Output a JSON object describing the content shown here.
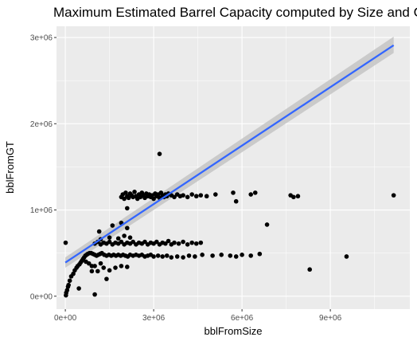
{
  "chart_data": {
    "type": "scatter",
    "title": "Maximum Estimated Barrel Capacity computed by Size and GT",
    "xlabel": "bblFromSize",
    "ylabel": "bblFromGT",
    "xlim": [
      -300000,
      11700000
    ],
    "ylim": [
      -150000,
      3130000
    ],
    "x_ticks": [
      0,
      3000000,
      6000000,
      9000000
    ],
    "x_tick_labels": [
      "0e+00",
      "3e+06",
      "6e+06",
      "9e+06"
    ],
    "y_ticks": [
      0,
      1000000,
      2000000,
      3000000
    ],
    "y_tick_labels": [
      "0e+00",
      "1e+06",
      "2e+06",
      "3e+06"
    ],
    "grid": true,
    "legend": "none",
    "colors": {
      "panel": "#ebebeb",
      "grid": "#ffffff",
      "points": "#000000",
      "trend": "#3366ff",
      "ribbon": "#c4c4c4"
    },
    "trend_line": {
      "method": "linear",
      "x": [
        0,
        11150000
      ],
      "y": [
        390000,
        2910000
      ],
      "ribbon_low": [
        330000,
        2820000
      ],
      "ribbon_high": [
        450000,
        3010000
      ]
    },
    "points": [
      [
        10000,
        620000
      ],
      [
        20000,
        10000
      ],
      [
        30000,
        40000
      ],
      [
        60000,
        70000
      ],
      [
        90000,
        110000
      ],
      [
        110000,
        130000
      ],
      [
        150000,
        180000
      ],
      [
        200000,
        230000
      ],
      [
        270000,
        260000
      ],
      [
        320000,
        300000
      ],
      [
        380000,
        330000
      ],
      [
        420000,
        350000
      ],
      [
        460000,
        90000
      ],
      [
        480000,
        370000
      ],
      [
        520000,
        390000
      ],
      [
        560000,
        410000
      ],
      [
        600000,
        430000
      ],
      [
        640000,
        450000
      ],
      [
        680000,
        470000
      ],
      [
        720000,
        480000
      ],
      [
        760000,
        490000
      ],
      [
        820000,
        500000
      ],
      [
        880000,
        500000
      ],
      [
        940000,
        490000
      ],
      [
        1000000,
        480000
      ],
      [
        1060000,
        470000
      ],
      [
        1120000,
        480000
      ],
      [
        1180000,
        490000
      ],
      [
        1240000,
        500000
      ],
      [
        1320000,
        480000
      ],
      [
        1400000,
        470000
      ],
      [
        1480000,
        480000
      ],
      [
        1560000,
        470000
      ],
      [
        1640000,
        480000
      ],
      [
        1720000,
        470000
      ],
      [
        1800000,
        480000
      ],
      [
        1880000,
        470000
      ],
      [
        1960000,
        480000
      ],
      [
        2040000,
        470000
      ],
      [
        2120000,
        460000
      ],
      [
        2200000,
        480000
      ],
      [
        2300000,
        470000
      ],
      [
        2400000,
        480000
      ],
      [
        2500000,
        470000
      ],
      [
        2600000,
        480000
      ],
      [
        2700000,
        460000
      ],
      [
        2800000,
        470000
      ],
      [
        2900000,
        480000
      ],
      [
        3000000,
        460000
      ],
      [
        3150000,
        470000
      ],
      [
        3300000,
        460000
      ],
      [
        3450000,
        470000
      ],
      [
        3600000,
        450000
      ],
      [
        3800000,
        460000
      ],
      [
        4000000,
        450000
      ],
      [
        4200000,
        470000
      ],
      [
        4400000,
        460000
      ],
      [
        4650000,
        480000
      ],
      [
        5000000,
        470000
      ],
      [
        5300000,
        480000
      ],
      [
        5600000,
        470000
      ],
      [
        5800000,
        460000
      ],
      [
        6000000,
        480000
      ],
      [
        6300000,
        470000
      ],
      [
        6600000,
        490000
      ],
      [
        8300000,
        310000
      ],
      [
        9550000,
        460000
      ],
      [
        600000,
        430000
      ],
      [
        700000,
        400000
      ],
      [
        800000,
        380000
      ],
      [
        900000,
        350000
      ],
      [
        1000000,
        350000
      ],
      [
        1200000,
        380000
      ],
      [
        1300000,
        330000
      ],
      [
        1500000,
        300000
      ],
      [
        1700000,
        330000
      ],
      [
        1900000,
        350000
      ],
      [
        2100000,
        340000
      ],
      [
        1400000,
        200000
      ],
      [
        1100000,
        290000
      ],
      [
        900000,
        290000
      ],
      [
        1000000,
        20000
      ],
      [
        1000000,
        610000
      ],
      [
        1100000,
        630000
      ],
      [
        1200000,
        600000
      ],
      [
        1300000,
        620000
      ],
      [
        1400000,
        610000
      ],
      [
        1500000,
        630000
      ],
      [
        1600000,
        600000
      ],
      [
        1700000,
        620000
      ],
      [
        1800000,
        610000
      ],
      [
        1900000,
        630000
      ],
      [
        2000000,
        600000
      ],
      [
        2100000,
        620000
      ],
      [
        2200000,
        610000
      ],
      [
        2300000,
        630000
      ],
      [
        2400000,
        600000
      ],
      [
        2500000,
        620000
      ],
      [
        2600000,
        610000
      ],
      [
        2700000,
        630000
      ],
      [
        2800000,
        600000
      ],
      [
        2900000,
        620000
      ],
      [
        3000000,
        610000
      ],
      [
        3100000,
        630000
      ],
      [
        3200000,
        600000
      ],
      [
        3300000,
        620000
      ],
      [
        3400000,
        610000
      ],
      [
        3500000,
        640000
      ],
      [
        3600000,
        600000
      ],
      [
        3700000,
        620000
      ],
      [
        3850000,
        610000
      ],
      [
        4000000,
        630000
      ],
      [
        4150000,
        600000
      ],
      [
        4300000,
        620000
      ],
      [
        4450000,
        610000
      ],
      [
        4600000,
        620000
      ],
      [
        1200000,
        660000
      ],
      [
        1500000,
        680000
      ],
      [
        1800000,
        670000
      ],
      [
        2000000,
        700000
      ],
      [
        1150000,
        750000
      ],
      [
        1600000,
        820000
      ],
      [
        1900000,
        850000
      ],
      [
        2100000,
        790000
      ],
      [
        2200000,
        680000
      ],
      [
        1900000,
        1150000
      ],
      [
        1950000,
        1180000
      ],
      [
        2000000,
        1130000
      ],
      [
        2050000,
        1200000
      ],
      [
        2100000,
        1160000
      ],
      [
        2150000,
        1140000
      ],
      [
        2200000,
        1190000
      ],
      [
        2250000,
        1170000
      ],
      [
        2300000,
        1150000
      ],
      [
        2350000,
        1210000
      ],
      [
        2400000,
        1160000
      ],
      [
        2450000,
        1130000
      ],
      [
        2500000,
        1180000
      ],
      [
        2550000,
        1150000
      ],
      [
        2600000,
        1200000
      ],
      [
        2650000,
        1170000
      ],
      [
        2700000,
        1140000
      ],
      [
        2750000,
        1190000
      ],
      [
        2800000,
        1160000
      ],
      [
        2850000,
        1180000
      ],
      [
        2900000,
        1150000
      ],
      [
        2950000,
        1170000
      ],
      [
        3000000,
        1130000
      ],
      [
        3050000,
        1190000
      ],
      [
        3100000,
        1160000
      ],
      [
        3150000,
        1180000
      ],
      [
        3200000,
        1140000
      ],
      [
        3250000,
        1200000
      ],
      [
        3300000,
        1170000
      ],
      [
        3350000,
        1150000
      ],
      [
        3400000,
        1180000
      ],
      [
        3450000,
        1160000
      ],
      [
        3500000,
        1190000
      ],
      [
        3600000,
        1170000
      ],
      [
        3700000,
        1150000
      ],
      [
        3800000,
        1180000
      ],
      [
        3900000,
        1160000
      ],
      [
        4000000,
        1170000
      ],
      [
        4150000,
        1150000
      ],
      [
        4300000,
        1180000
      ],
      [
        4450000,
        1160000
      ],
      [
        4600000,
        1170000
      ],
      [
        4800000,
        1160000
      ],
      [
        5100000,
        1180000
      ],
      [
        5700000,
        1200000
      ],
      [
        5800000,
        1100000
      ],
      [
        6300000,
        1180000
      ],
      [
        6450000,
        1200000
      ],
      [
        6850000,
        830000
      ],
      [
        7650000,
        1170000
      ],
      [
        7750000,
        1150000
      ],
      [
        7900000,
        1160000
      ],
      [
        11150000,
        1170000
      ],
      [
        3200000,
        1650000
      ],
      [
        2100000,
        1020000
      ]
    ]
  }
}
